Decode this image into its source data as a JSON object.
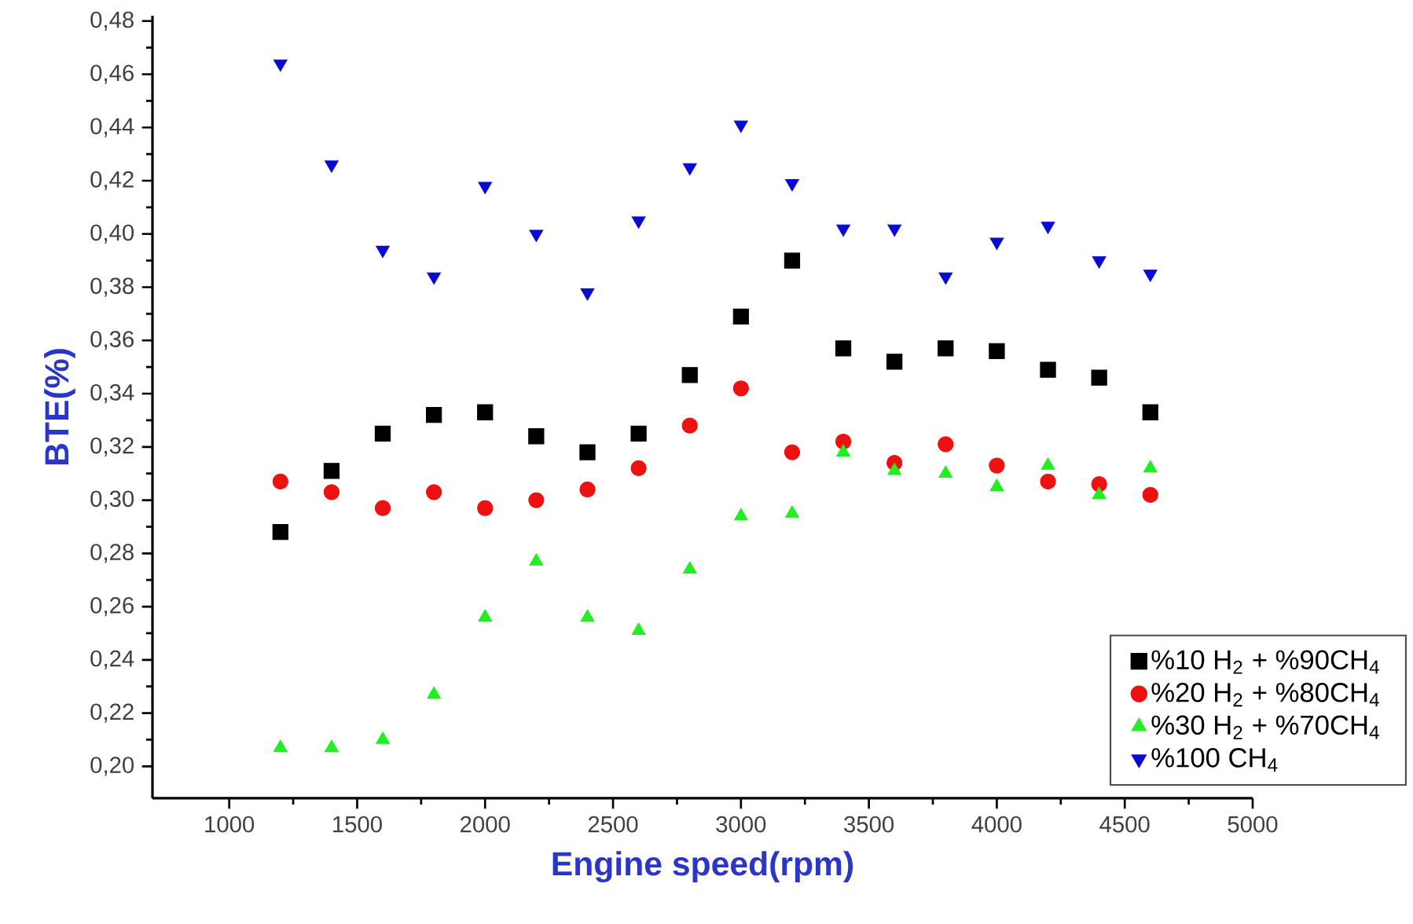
{
  "chart_data": {
    "type": "scatter",
    "xlabel": "Engine speed(rpm)",
    "ylabel": "BTE(%)",
    "x": [
      1200,
      1400,
      1600,
      1800,
      2000,
      2200,
      2400,
      2600,
      2800,
      3000,
      3200,
      3400,
      3600,
      3800,
      4000,
      4200,
      4400,
      4600
    ],
    "series": [
      {
        "name": "%10 H$_{2}$ + %90CH$_{4}$",
        "color": "#000000",
        "marker": "square",
        "values": [
          0.288,
          0.311,
          0.325,
          0.332,
          0.333,
          0.324,
          0.318,
          0.325,
          0.347,
          0.369,
          0.39,
          0.357,
          0.352,
          0.357,
          0.356,
          0.349,
          0.346,
          0.333
        ]
      },
      {
        "name": "%20 H$_{2}$ + %80CH$_{4}$",
        "color": "#ee1111",
        "marker": "circle",
        "values": [
          0.307,
          0.303,
          0.297,
          0.303,
          0.297,
          0.3,
          0.304,
          0.312,
          0.328,
          0.342,
          0.318,
          0.322,
          0.314,
          0.321,
          0.313,
          0.307,
          0.306,
          0.302
        ]
      },
      {
        "name": "%30 H$_{2}$ + %70CH$_{4}$",
        "color": "#22ee22",
        "marker": "triangle",
        "values": [
          0.207,
          0.207,
          0.21,
          0.227,
          0.256,
          0.277,
          0.256,
          0.251,
          0.274,
          0.294,
          0.295,
          0.318,
          0.311,
          0.31,
          0.305,
          0.313,
          0.302,
          0.312
        ]
      },
      {
        "name": "%100 CH$_{4}$",
        "color": "#0a0ad0",
        "marker": "triangle-down",
        "values": [
          0.464,
          0.426,
          0.394,
          0.384,
          0.418,
          0.4,
          0.378,
          0.405,
          0.425,
          0.441,
          0.419,
          0.402,
          0.402,
          0.384,
          0.397,
          0.403,
          0.39,
          0.385
        ]
      }
    ],
    "xlim": [
      700,
      5000
    ],
    "xticks": [
      1000,
      1500,
      2000,
      2500,
      3000,
      3500,
      4000,
      4500,
      5000
    ],
    "ylim": [
      0.188,
      0.482
    ],
    "yticks": [
      {
        "value": 0.2,
        "label": "0,20"
      },
      {
        "value": 0.22,
        "label": "0,22"
      },
      {
        "value": 0.24,
        "label": "0,24"
      },
      {
        "value": 0.26,
        "label": "0,26"
      },
      {
        "value": 0.28,
        "label": "0,28"
      },
      {
        "value": 0.3,
        "label": "0,30"
      },
      {
        "value": 0.32,
        "label": "0,32"
      },
      {
        "value": 0.34,
        "label": "0,34"
      },
      {
        "value": 0.36,
        "label": "0,36"
      },
      {
        "value": 0.38,
        "label": "0,38"
      },
      {
        "value": 0.4,
        "label": "0,40"
      },
      {
        "value": 0.42,
        "label": "0,42"
      },
      {
        "value": 0.44,
        "label": "0,44"
      },
      {
        "value": 0.46,
        "label": "0,46"
      },
      {
        "value": 0.48,
        "label": "0,48"
      }
    ],
    "legend": "bottom right"
  }
}
